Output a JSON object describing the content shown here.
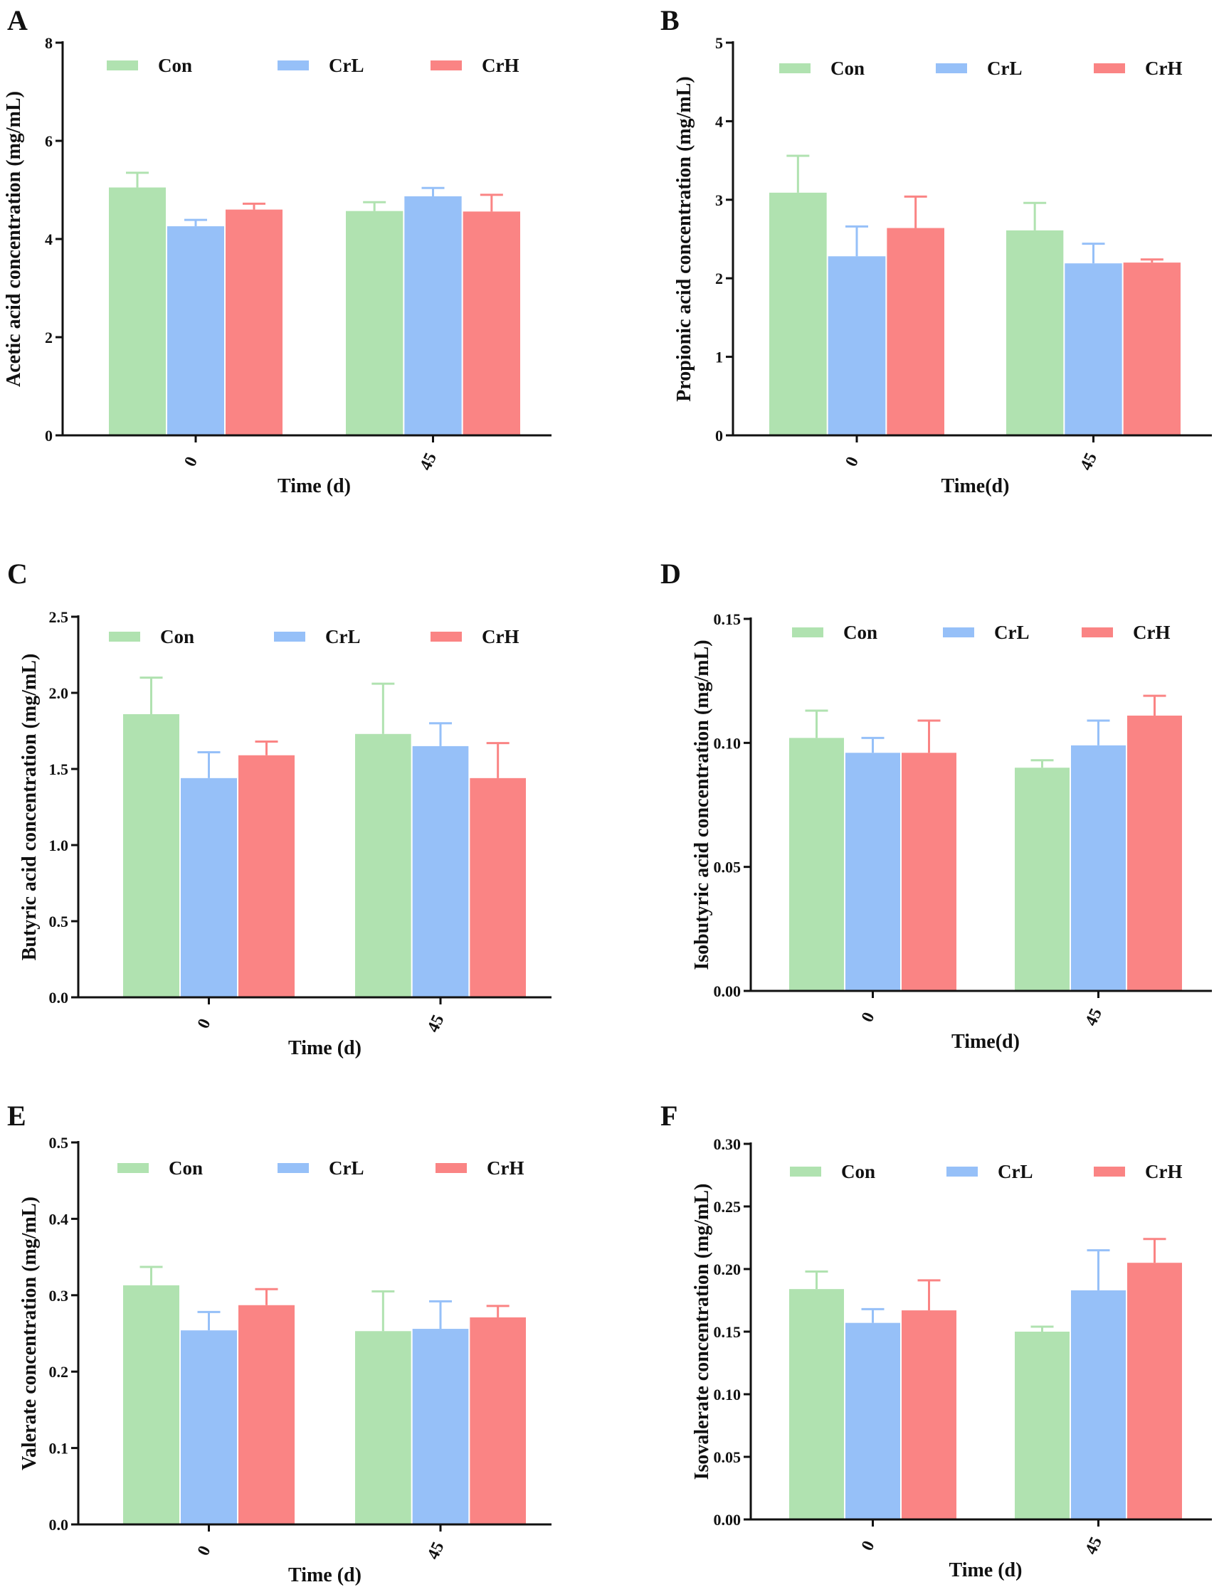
{
  "colors": {
    "Con": "#b0e2b0",
    "CrL": "#96c0f8",
    "CrH": "#fa8484",
    "axis": "#111111"
  },
  "chart_data": [
    {
      "type": "bar",
      "panel": "A",
      "title": "",
      "xlabel": "Time (d)",
      "ylabel": "Acetic acid concentration (mg/mL)",
      "categories": [
        "0",
        "45"
      ],
      "ylim": [
        0,
        8
      ],
      "yticks": [
        "0",
        "2",
        "4",
        "6",
        "8"
      ],
      "series": [
        {
          "name": "Con",
          "values": [
            5.05,
            4.57
          ],
          "errors": [
            0.3,
            0.18
          ]
        },
        {
          "name": "CrL",
          "values": [
            4.26,
            4.87
          ],
          "errors": [
            0.13,
            0.17
          ]
        },
        {
          "name": "CrH",
          "values": [
            4.6,
            4.56
          ],
          "errors": [
            0.12,
            0.34
          ]
        }
      ]
    },
    {
      "type": "bar",
      "panel": "B",
      "title": "",
      "xlabel": "Time(d)",
      "ylabel": "Propionic acid concentration (mg/mL)",
      "categories": [
        "0",
        "45"
      ],
      "ylim": [
        0,
        5
      ],
      "yticks": [
        "0",
        "1",
        "2",
        "3",
        "4",
        "5"
      ],
      "series": [
        {
          "name": "Con",
          "values": [
            3.09,
            2.61
          ],
          "errors": [
            0.47,
            0.35
          ]
        },
        {
          "name": "CrL",
          "values": [
            2.28,
            2.19
          ],
          "errors": [
            0.38,
            0.25
          ]
        },
        {
          "name": "CrH",
          "values": [
            2.64,
            2.2
          ],
          "errors": [
            0.4,
            0.04
          ]
        }
      ]
    },
    {
      "type": "bar",
      "panel": "C",
      "title": "",
      "xlabel": "Time (d)",
      "ylabel": "Butyric acid concentration (mg/mL)",
      "categories": [
        "0",
        "45"
      ],
      "ylim": [
        0,
        2.5
      ],
      "yticks": [
        "0.0",
        "0.5",
        "1.0",
        "1.5",
        "2.0",
        "2.5"
      ],
      "series": [
        {
          "name": "Con",
          "values": [
            1.86,
            1.73
          ],
          "errors": [
            0.24,
            0.33
          ]
        },
        {
          "name": "CrL",
          "values": [
            1.44,
            1.65
          ],
          "errors": [
            0.17,
            0.15
          ]
        },
        {
          "name": "CrH",
          "values": [
            1.59,
            1.44
          ],
          "errors": [
            0.09,
            0.23
          ]
        }
      ]
    },
    {
      "type": "bar",
      "panel": "D",
      "title": "",
      "xlabel": "Time(d)",
      "ylabel": "Isobutyric acid concentration (mg/mL)",
      "categories": [
        "0",
        "45"
      ],
      "ylim": [
        0,
        0.15
      ],
      "yticks": [
        "0.00",
        "0.05",
        "0.10",
        "0.15"
      ],
      "series": [
        {
          "name": "Con",
          "values": [
            0.102,
            0.09
          ],
          "errors": [
            0.011,
            0.003
          ]
        },
        {
          "name": "CrL",
          "values": [
            0.096,
            0.099
          ],
          "errors": [
            0.006,
            0.01
          ]
        },
        {
          "name": "CrH",
          "values": [
            0.096,
            0.111
          ],
          "errors": [
            0.013,
            0.008
          ]
        }
      ]
    },
    {
      "type": "bar",
      "panel": "E",
      "title": "",
      "xlabel": "Time (d)",
      "ylabel": "Valerate concentration (mg/mL)",
      "categories": [
        "0",
        "45"
      ],
      "ylim": [
        0,
        0.5
      ],
      "yticks": [
        "0.0",
        "0.1",
        "0.2",
        "0.3",
        "0.4",
        "0.5"
      ],
      "series": [
        {
          "name": "Con",
          "values": [
            0.313,
            0.253
          ],
          "errors": [
            0.024,
            0.052
          ]
        },
        {
          "name": "CrL",
          "values": [
            0.254,
            0.256
          ],
          "errors": [
            0.024,
            0.036
          ]
        },
        {
          "name": "CrH",
          "values": [
            0.287,
            0.271
          ],
          "errors": [
            0.021,
            0.015
          ]
        }
      ]
    },
    {
      "type": "bar",
      "panel": "F",
      "title": "",
      "xlabel": "Time (d)",
      "ylabel": "Isovalerate concentration (mg/mL)",
      "categories": [
        "0",
        "45"
      ],
      "ylim": [
        0,
        0.3
      ],
      "yticks": [
        "0.00",
        "0.05",
        "0.10",
        "0.15",
        "0.20",
        "0.25",
        "0.30"
      ],
      "series": [
        {
          "name": "Con",
          "values": [
            0.184,
            0.15
          ],
          "errors": [
            0.014,
            0.004
          ]
        },
        {
          "name": "CrL",
          "values": [
            0.157,
            0.183
          ],
          "errors": [
            0.011,
            0.032
          ]
        },
        {
          "name": "CrH",
          "values": [
            0.167,
            0.205
          ],
          "errors": [
            0.024,
            0.019
          ]
        }
      ]
    }
  ]
}
